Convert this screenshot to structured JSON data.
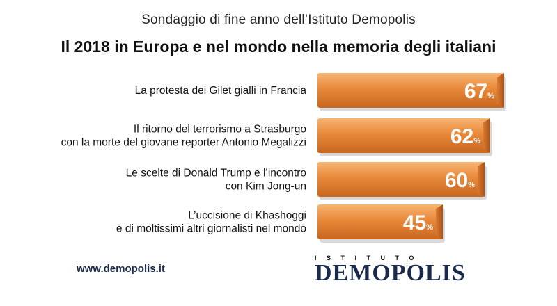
{
  "header": {
    "subtitle": "Sondaggio di fine anno dell’Istituto Demopolis",
    "title": "Il 2018 in Europa e nel mondo nella memoria degli italiani"
  },
  "chart_data": {
    "type": "bar",
    "orientation": "horizontal",
    "categories": [
      [
        "La  protesta dei Gilet gialli in Francia"
      ],
      [
        "Il ritorno del terrorismo a Strasburgo",
        "con la morte del giovane reporter Antonio Megalizzi"
      ],
      [
        "Le scelte di Donald Trump e l’incontro",
        "con Kim Jong-un"
      ],
      [
        "L’uccisione di Khashoggi",
        "e di moltissimi altri giornalisti nel mondo"
      ]
    ],
    "values": [
      67,
      62,
      60,
      45
    ],
    "value_suffix": "%",
    "bar_color": "#e8893a"
  },
  "footer": {
    "website": "www.demopolis.it",
    "logo_top": "ISTITUTO",
    "logo_main": "DEMOPOLIS"
  }
}
